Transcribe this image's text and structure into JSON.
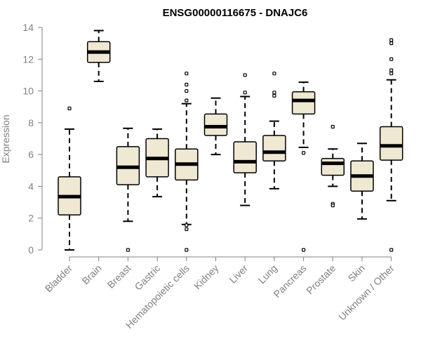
{
  "chart_data": {
    "type": "boxplot",
    "title": "ENSG00000116675 - DNAJC6",
    "xlabel": "",
    "ylabel": "Expression",
    "ylim": [
      0,
      14
    ],
    "yticks": [
      0,
      2,
      4,
      6,
      8,
      10,
      12,
      14
    ],
    "grid": false,
    "colors": {
      "box_fill": "#efe8d2",
      "box_stroke": "#000000",
      "axis": "#808080"
    },
    "categories": [
      "Bladder",
      "Brain",
      "Breast",
      "Gastric",
      "Hematopoietic cells",
      "Kidney",
      "Liver",
      "Lung",
      "Pancreas",
      "Prostate",
      "Skin",
      "Unknown / Other"
    ],
    "boxes": [
      {
        "category": "Bladder",
        "whisker_low": 0.0,
        "q1": 2.2,
        "median": 3.35,
        "q3": 4.6,
        "whisker_high": 7.6,
        "outliers": [
          8.9
        ]
      },
      {
        "category": "Brain",
        "whisker_low": 10.6,
        "q1": 11.8,
        "median": 12.45,
        "q3": 13.1,
        "whisker_high": 13.8,
        "outliers": []
      },
      {
        "category": "Breast",
        "whisker_low": 1.8,
        "q1": 4.1,
        "median": 5.2,
        "q3": 6.5,
        "whisker_high": 7.65,
        "outliers": [
          0.0
        ]
      },
      {
        "category": "Gastric",
        "whisker_low": 3.35,
        "q1": 4.6,
        "median": 5.75,
        "q3": 7.0,
        "whisker_high": 7.6,
        "outliers": []
      },
      {
        "category": "Hematopoietic cells",
        "whisker_low": 1.6,
        "q1": 4.4,
        "median": 5.4,
        "q3": 6.35,
        "whisker_high": 9.2,
        "outliers": [
          11.1,
          10.4,
          10.0,
          9.4,
          1.55,
          1.3,
          0.0
        ]
      },
      {
        "category": "Kidney",
        "whisker_low": 6.0,
        "q1": 7.2,
        "median": 7.75,
        "q3": 8.55,
        "whisker_high": 9.55,
        "outliers": []
      },
      {
        "category": "Liver",
        "whisker_low": 2.8,
        "q1": 4.85,
        "median": 5.55,
        "q3": 6.8,
        "whisker_high": 9.65,
        "outliers": [
          11.0,
          9.9
        ]
      },
      {
        "category": "Lung",
        "whisker_low": 3.85,
        "q1": 5.6,
        "median": 6.15,
        "q3": 7.2,
        "whisker_high": 8.1,
        "outliers": [
          11.1,
          9.9,
          9.7
        ]
      },
      {
        "category": "Pancreas",
        "whisker_low": 6.45,
        "q1": 8.55,
        "median": 9.4,
        "q3": 9.95,
        "whisker_high": 10.55,
        "outliers": [
          6.1,
          0.0
        ]
      },
      {
        "category": "Prostate",
        "whisker_low": 4.0,
        "q1": 4.7,
        "median": 5.45,
        "q3": 5.75,
        "whisker_high": 6.35,
        "outliers": [
          7.75,
          2.9,
          2.8
        ]
      },
      {
        "category": "Skin",
        "whisker_low": 1.95,
        "q1": 3.7,
        "median": 4.65,
        "q3": 5.6,
        "whisker_high": 6.7,
        "outliers": []
      },
      {
        "category": "Unknown / Other",
        "whisker_low": 3.1,
        "q1": 5.65,
        "median": 6.55,
        "q3": 7.75,
        "whisker_high": 10.7,
        "outliers": [
          13.2,
          13.0,
          12.0,
          11.3,
          11.1,
          0.0
        ]
      }
    ]
  }
}
